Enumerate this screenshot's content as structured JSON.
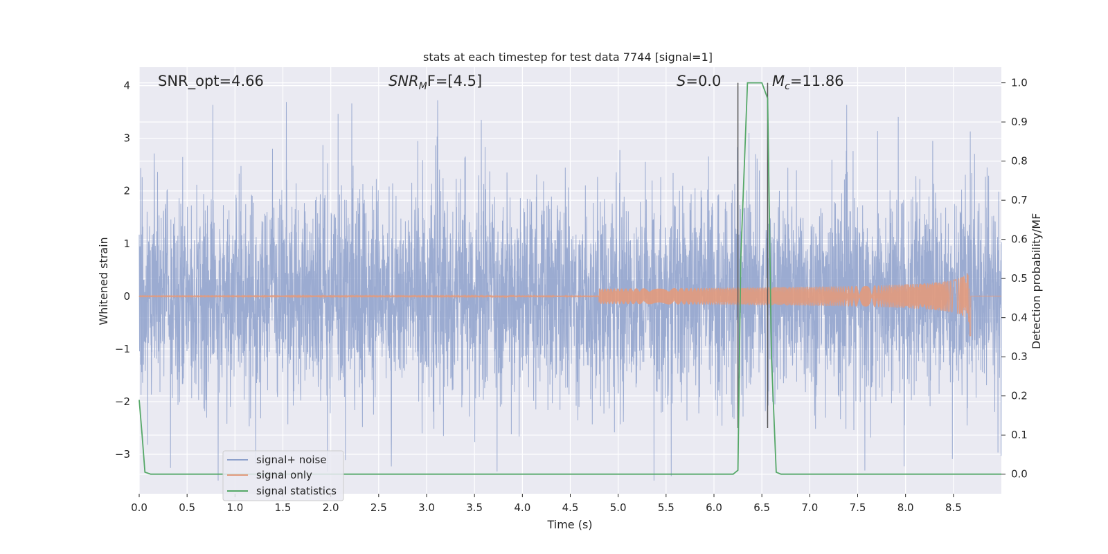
{
  "chart_data": {
    "type": "line",
    "title": "stats at each timestep for test data 7744 [signal=1]",
    "xlabel": "Time (s)",
    "ylabel_left": "Whitened strain",
    "ylabel_right": "Detection probability/MF",
    "xlim": [
      0.0,
      9.0
    ],
    "ylim_left": [
      -3.75,
      4.35
    ],
    "ylim_right": [
      -0.05,
      1.04
    ],
    "grid": true,
    "legend_position": "lower-left",
    "x_ticks": [
      "0.0",
      "0.5",
      "1.0",
      "1.5",
      "2.0",
      "2.5",
      "3.0",
      "3.5",
      "4.0",
      "4.5",
      "5.0",
      "5.5",
      "6.0",
      "6.5",
      "7.0",
      "7.5",
      "8.0",
      "8.5"
    ],
    "y_ticks_left": [
      "−3",
      "−2",
      "−1",
      "0",
      "1",
      "2",
      "3",
      "4"
    ],
    "y_ticks_right": [
      "0.0",
      "0.1",
      "0.2",
      "0.3",
      "0.4",
      "0.5",
      "0.6",
      "0.7",
      "0.8",
      "0.9",
      "1.0"
    ],
    "annotations": {
      "snr_opt": "SNR_opt=4.66",
      "snr_mf_main": "SNR",
      "snr_mf_sub": "M",
      "snr_mf_rest": "F=[4.5]",
      "s_main": "S",
      "s_rest": "=0.0",
      "mc_main": "M",
      "mc_sub": "c",
      "mc_rest": "=11.86"
    },
    "vlines_x": [
      6.25,
      6.56
    ],
    "series": [
      {
        "name": "signal+ noise",
        "color": "#8da0cb",
        "description": "whitened noise, amplitude ~±2 with spikes to ±3"
      },
      {
        "name": "signal only",
        "color": "#e29a7c",
        "chirp_start": 4.8,
        "chirp_peak_time": 8.67,
        "chirp_peak_amplitude": 0.55
      },
      {
        "name": "signal statistics",
        "color": "#55a868",
        "x": [
          0.0,
          0.03,
          0.06,
          0.12,
          6.2,
          6.25,
          6.28,
          6.35,
          6.5,
          6.56,
          6.6,
          6.65,
          6.7,
          9.0
        ],
        "y": [
          0.19,
          0.1,
          0.005,
          0.0,
          0.0,
          0.01,
          0.55,
          1.0,
          1.0,
          0.96,
          0.3,
          0.005,
          0.0,
          0.0
        ]
      }
    ]
  }
}
